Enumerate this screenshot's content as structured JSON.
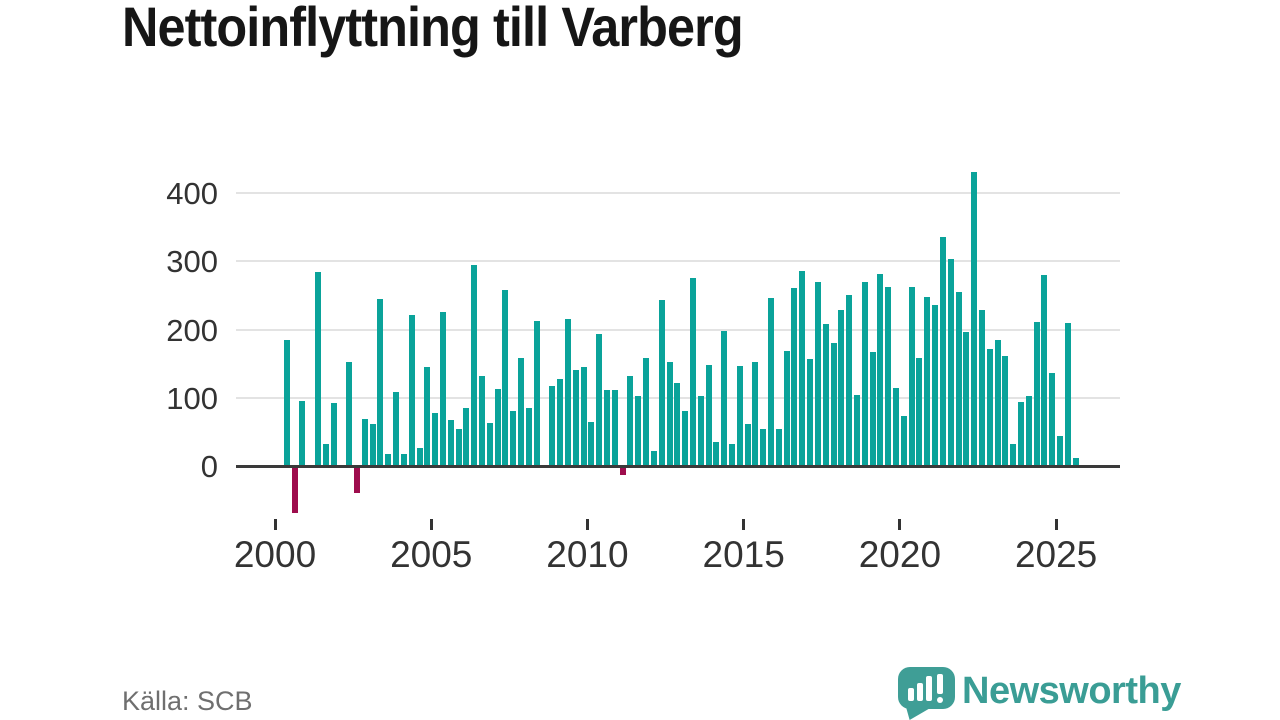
{
  "title": "Nettoinflyttning till Varberg",
  "source": "Källa: SCB",
  "logo": {
    "text": "Newsworthy"
  },
  "colors": {
    "positive_bar": "#0aa39a",
    "negative_bar": "#9e0d4d",
    "axis_line": "#3a3a3a",
    "gridline": "#e3e3e3",
    "tick_label": "#333333",
    "title_text": "#161616",
    "source_text": "#6f6f6f",
    "logo_teal": "#3f9e96"
  },
  "chart_data": {
    "type": "bar",
    "title": "Nettoinflyttning till Varberg",
    "xlabel": "",
    "ylabel": "",
    "grid": true,
    "legend": "none",
    "ylim": [
      -100,
      450
    ],
    "yticks": [
      0,
      100,
      200,
      300,
      400
    ],
    "xticks": [
      2000,
      2005,
      2010,
      2015,
      2020,
      2025
    ],
    "quarters": [
      "2000Q2",
      "2000Q3",
      "2000Q4",
      "2001Q1",
      "2001Q2",
      "2001Q3",
      "2001Q4",
      "2002Q1",
      "2002Q2",
      "2002Q3",
      "2002Q4",
      "2003Q1",
      "2003Q2",
      "2003Q3",
      "2003Q4",
      "2004Q1",
      "2004Q2",
      "2004Q3",
      "2004Q4",
      "2005Q1",
      "2005Q2",
      "2005Q3",
      "2005Q4",
      "2006Q1",
      "2006Q2",
      "2006Q3",
      "2006Q4",
      "2007Q1",
      "2007Q2",
      "2007Q3",
      "2007Q4",
      "2008Q1",
      "2008Q2",
      "2008Q3",
      "2008Q4",
      "2009Q1",
      "2009Q2",
      "2009Q3",
      "2009Q4",
      "2010Q1",
      "2010Q2",
      "2010Q3",
      "2010Q4",
      "2011Q1",
      "2011Q2",
      "2011Q3",
      "2011Q4",
      "2012Q1",
      "2012Q2",
      "2012Q3",
      "2012Q4",
      "2013Q1",
      "2013Q2",
      "2013Q3",
      "2013Q4",
      "2014Q1",
      "2014Q2",
      "2014Q3",
      "2014Q4",
      "2015Q1",
      "2015Q2",
      "2015Q3",
      "2015Q4",
      "2016Q1",
      "2016Q2",
      "2016Q3",
      "2016Q4",
      "2017Q1",
      "2017Q2",
      "2017Q3",
      "2017Q4",
      "2018Q1",
      "2018Q2",
      "2018Q3",
      "2018Q4",
      "2019Q1",
      "2019Q2",
      "2019Q3",
      "2019Q4",
      "2020Q1",
      "2020Q2",
      "2020Q3",
      "2020Q4",
      "2021Q1",
      "2021Q2",
      "2021Q3",
      "2021Q4",
      "2022Q1",
      "2022Q2",
      "2022Q3",
      "2022Q4",
      "2023Q1",
      "2023Q2",
      "2023Q3",
      "2023Q4",
      "2024Q1",
      "2024Q2",
      "2024Q3",
      "2024Q4",
      "2025Q1",
      "2025Q2",
      "2025Q3"
    ],
    "values": [
      185,
      -67,
      95,
      0,
      285,
      32,
      93,
      0,
      152,
      -37,
      69,
      62,
      245,
      17,
      108,
      17,
      222,
      27,
      145,
      77,
      225,
      67,
      55,
      85,
      295,
      132,
      63,
      113,
      258,
      81,
      159,
      85,
      213,
      0,
      117,
      128,
      215,
      140,
      145,
      65,
      193,
      111,
      112,
      -11,
      132,
      103,
      158,
      22,
      243,
      153,
      122,
      80,
      276,
      102,
      148,
      35,
      198,
      32,
      147,
      62,
      152,
      55,
      246,
      55,
      169,
      261,
      286,
      157,
      269,
      208,
      181,
      228,
      250,
      104,
      270,
      167,
      282,
      263,
      115,
      73,
      262,
      158,
      248,
      236,
      336,
      303,
      255,
      196,
      431,
      229,
      172,
      185,
      161,
      32,
      94,
      102,
      211,
      280,
      136,
      44,
      210,
      12
    ]
  }
}
